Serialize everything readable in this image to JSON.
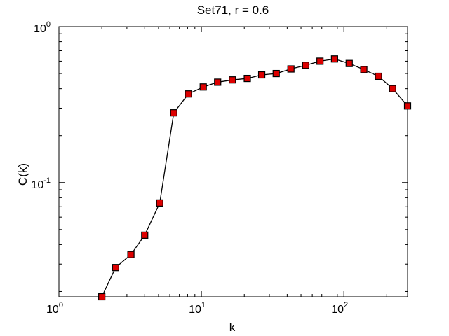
{
  "chart_data": {
    "type": "line",
    "title": "Set71, r = 0.6",
    "xlabel": "k",
    "ylabel": "C(k)",
    "xscale": "log",
    "yscale": "log",
    "xlim": [
      1,
      280
    ],
    "ylim": [
      0.0185,
      1
    ],
    "grid": false,
    "x_ticks": [
      {
        "base": "10",
        "exp": "0",
        "value": 1
      },
      {
        "base": "10",
        "exp": "1",
        "value": 10
      },
      {
        "base": "10",
        "exp": "2",
        "value": 100
      }
    ],
    "y_ticks": [
      {
        "base": "10",
        "exp": "-1",
        "value": 0.1
      },
      {
        "base": "10",
        "exp": "0",
        "value": 1
      }
    ],
    "series": [
      {
        "color": "#000000",
        "marker": "square",
        "marker_color": "#dd0000",
        "x": [
          2,
          2.5,
          3.2,
          4,
          5.1,
          6.4,
          8.1,
          10.3,
          13,
          16.5,
          21,
          26.5,
          33.5,
          42.5,
          54,
          68,
          86,
          109,
          138,
          175,
          220,
          280
        ],
        "y": [
          0.0185,
          0.0285,
          0.0345,
          0.046,
          0.074,
          0.28,
          0.37,
          0.41,
          0.44,
          0.455,
          0.465,
          0.49,
          0.5,
          0.535,
          0.565,
          0.6,
          0.62,
          0.58,
          0.53,
          0.48,
          0.4,
          0.31
        ]
      }
    ]
  }
}
